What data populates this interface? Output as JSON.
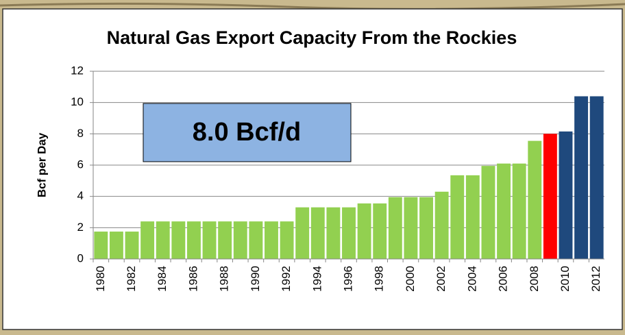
{
  "chart_data": {
    "type": "bar",
    "title": "Natural Gas Export Capacity From the Rockies",
    "y_label": "Bcf per Day",
    "annotation": "8.0 Bcf/d",
    "categories": [
      "1980",
      null,
      "1982",
      null,
      "1984",
      null,
      "1986",
      null,
      "1988",
      null,
      "1990",
      null,
      "1992",
      null,
      "1994",
      null,
      "1996",
      null,
      "1998",
      null,
      "2000",
      null,
      "2002",
      null,
      "2004",
      null,
      "2006",
      null,
      "2008",
      null,
      "2010",
      null,
      "2012"
    ],
    "values": [
      1.75,
      1.75,
      1.75,
      2.4,
      2.4,
      2.4,
      2.4,
      2.4,
      2.4,
      2.4,
      2.4,
      2.4,
      2.4,
      3.3,
      3.3,
      3.3,
      3.3,
      3.55,
      3.55,
      3.95,
      3.95,
      3.95,
      4.3,
      5.35,
      5.35,
      5.95,
      6.1,
      6.1,
      7.55,
      8.0,
      8.15,
      10.4,
      10.4
    ],
    "colors": [
      "#92d050",
      "#92d050",
      "#92d050",
      "#92d050",
      "#92d050",
      "#92d050",
      "#92d050",
      "#92d050",
      "#92d050",
      "#92d050",
      "#92d050",
      "#92d050",
      "#92d050",
      "#92d050",
      "#92d050",
      "#92d050",
      "#92d050",
      "#92d050",
      "#92d050",
      "#92d050",
      "#92d050",
      "#92d050",
      "#92d050",
      "#92d050",
      "#92d050",
      "#92d050",
      "#92d050",
      "#92d050",
      "#92d050",
      "#ff0000",
      "#1f497d",
      "#1f497d",
      "#1f497d"
    ],
    "ylim": [
      0,
      12
    ],
    "yticks": [
      0,
      2,
      4,
      6,
      8,
      10,
      12
    ],
    "grid": true
  }
}
